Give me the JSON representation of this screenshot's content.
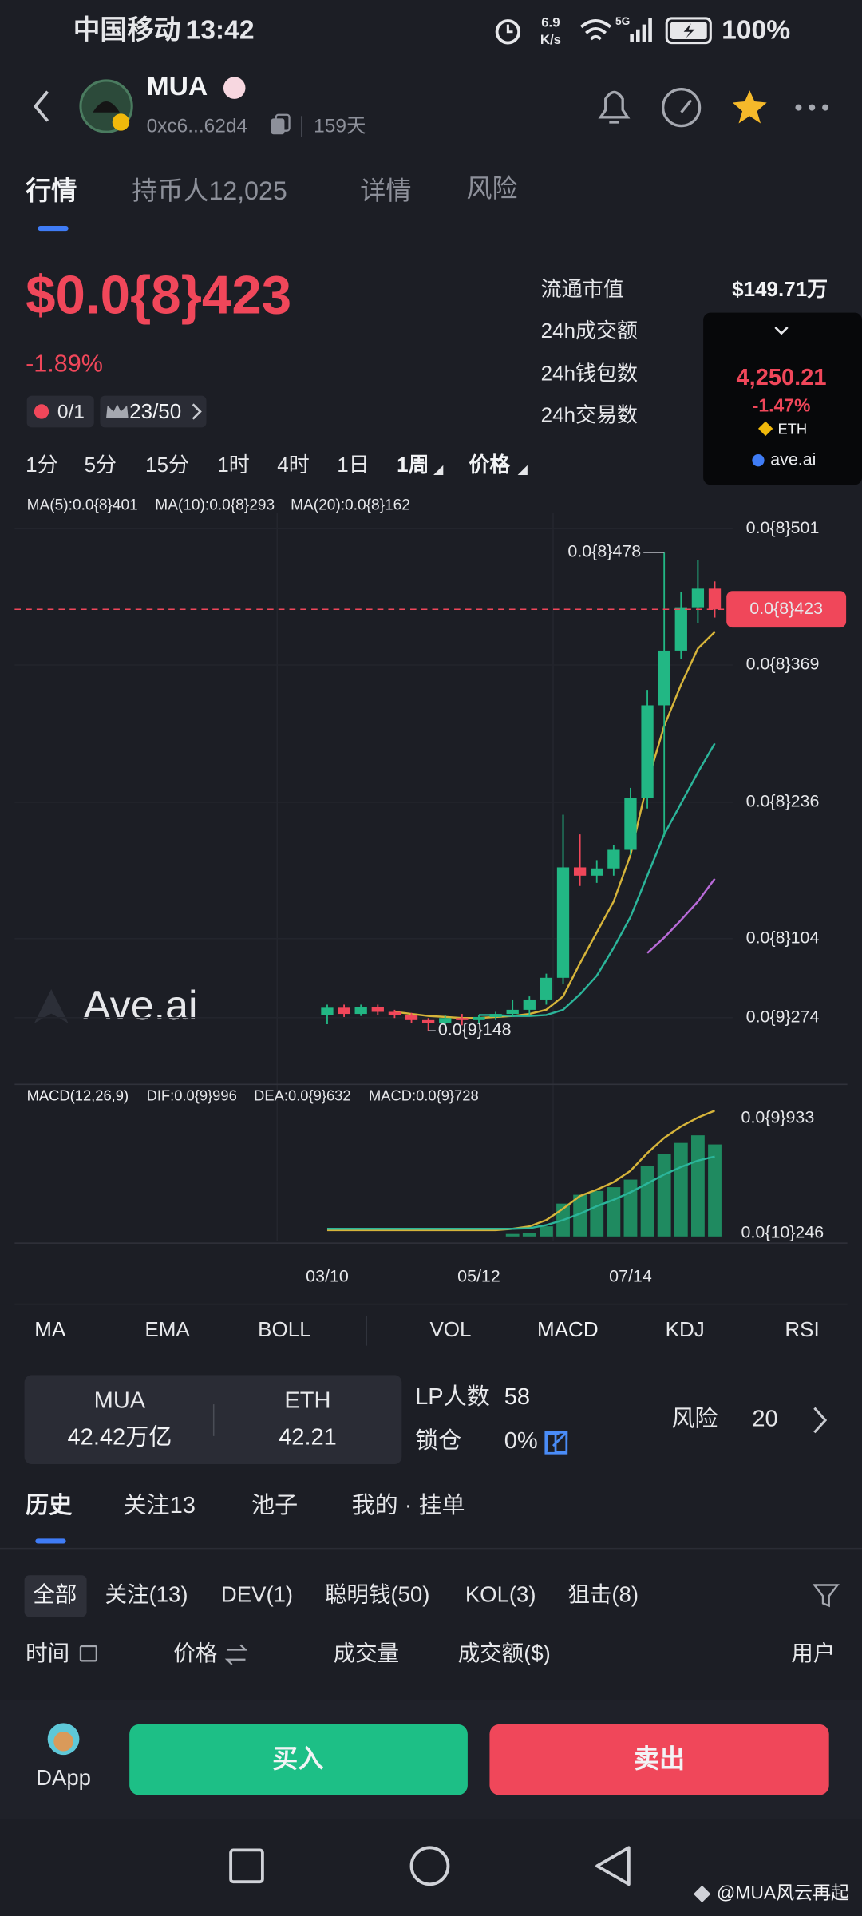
{
  "status_bar": {
    "carrier": "中国移动",
    "time": "13:42",
    "speed": "6.9",
    "speed_unit": "K/s",
    "network": "5G",
    "battery": "100%"
  },
  "header": {
    "name": "MUA",
    "address": "0xc6...62d4",
    "age": "159天"
  },
  "tabs": [
    "行情",
    "持币人12,025",
    "详情",
    "风险"
  ],
  "price": {
    "price": "$0.0{8}423",
    "change": "-1.89%",
    "badge_1": "0/1",
    "badge_2": "23/50"
  },
  "stats": {
    "labels": [
      "流通市值",
      "24h成交额",
      "24h钱包数",
      "24h交易数"
    ],
    "market_cap": "$149.71万"
  },
  "popup": {
    "price": "4,250.21",
    "change": "-1.47%",
    "symbol": "ETH",
    "source": "ave.ai"
  },
  "intervals": [
    "1分",
    "5分",
    "15分",
    "1时",
    "4时",
    "1日",
    "1周",
    "价格"
  ],
  "chart_data": [
    {
      "type": "candlestick",
      "categories": [
        "03/10",
        null,
        null,
        null,
        null,
        null,
        null,
        null,
        null,
        "05/12",
        null,
        null,
        null,
        null,
        null,
        null,
        null,
        null,
        "07/14",
        null,
        null,
        null,
        null,
        null
      ],
      "open": [
        3e-10,
        3.7e-10,
        3.1e-10,
        3.8e-10,
        3.3e-10,
        3e-10,
        2.5e-10,
        2.2e-10,
        2.7e-10,
        2.5e-10,
        2.8e-10,
        3.1e-10,
        3.5e-10,
        4.5e-10,
        6.6e-10,
        1.73e-09,
        1.65e-09,
        1.72e-09,
        1.9e-09,
        2.4e-09,
        3.3e-09,
        3.83e-09,
        4.25e-09,
        4.43e-09
      ],
      "high": [
        4e-10,
        4e-10,
        4e-10,
        4e-10,
        3.5e-10,
        3.2e-10,
        2.7e-10,
        3e-10,
        3.1e-10,
        3e-10,
        3.3e-10,
        4.5e-10,
        4.8e-10,
        7e-10,
        2.24e-09,
        2.05e-09,
        1.8e-09,
        1.95e-09,
        2.5e-09,
        3.45e-09,
        4.78e-09,
        4.4e-09,
        4.71e-09,
        4.5e-09
      ],
      "low": [
        2.1e-10,
        2.8e-10,
        2.9e-10,
        3e-10,
        2.7e-10,
        2.2e-10,
        1.48e-10,
        1.8e-10,
        2e-10,
        2.2e-10,
        2.5e-10,
        2.8e-10,
        3e-10,
        4e-10,
        6e-10,
        1.55e-09,
        1.58e-09,
        1.65e-09,
        1.85e-09,
        2.3e-09,
        2.03e-09,
        3.75e-09,
        4.1e-09,
        4.15e-09
      ],
      "close": [
        3.7e-10,
        3.1e-10,
        3.8e-10,
        3.3e-10,
        3e-10,
        2.5e-10,
        2.2e-10,
        2.7e-10,
        2.5e-10,
        2.8e-10,
        3.1e-10,
        3.5e-10,
        4.5e-10,
        6.6e-10,
        1.73e-09,
        1.65e-09,
        1.72e-09,
        1.9e-09,
        2.4e-09,
        3.3e-09,
        3.83e-09,
        4.25e-09,
        4.43e-09,
        4.23e-09
      ],
      "up_color": "#22b784",
      "down_color": "#f0475a",
      "series": [
        {
          "name": "MA(5):0.0{8}401",
          "color": "#d6b43a",
          "values": [
            null,
            null,
            null,
            null,
            3.3e-10,
            3.1e-10,
            2.9e-10,
            2.8e-10,
            2.7e-10,
            2.7e-10,
            2.8e-10,
            2.9e-10,
            3.1e-10,
            3.5e-10,
            4.8e-10,
            8e-10,
            1.1e-09,
            1.4e-09,
            1.85e-09,
            2.55e-09,
            3.1e-09,
            3.5e-09,
            3.85e-09,
            4.01e-09
          ]
        },
        {
          "name": "MA(10):0.0{8}293",
          "color": "#2bb59a",
          "values": [
            null,
            null,
            null,
            null,
            null,
            null,
            null,
            null,
            null,
            3e-10,
            3e-10,
            2.9e-10,
            2.9e-10,
            3e-10,
            3.5e-10,
            5e-10,
            6.8e-10,
            9.5e-10,
            1.25e-09,
            1.65e-09,
            2.05e-09,
            2.35e-09,
            2.65e-09,
            2.93e-09
          ]
        },
        {
          "name": "MA(20):0.0{8}162",
          "color": "#b86ad8",
          "values": [
            null,
            null,
            null,
            null,
            null,
            null,
            null,
            null,
            null,
            null,
            null,
            null,
            null,
            null,
            null,
            null,
            null,
            null,
            null,
            9e-10,
            1.05e-09,
            1.22e-09,
            1.4e-09,
            1.62e-09
          ]
        }
      ],
      "ylim": [
        -3.37e-10,
        5.164e-09
      ],
      "yticks": [
        {
          "value": 5.01e-09,
          "label": "0.0{8}501"
        },
        {
          "value": 3.69e-09,
          "label": "0.0{8}369"
        },
        {
          "value": 2.36e-09,
          "label": "0.0{8}236"
        },
        {
          "value": 1.04e-09,
          "label": "0.0{8}104"
        },
        {
          "value": 2.74e-10,
          "label": "0.0{9}274"
        }
      ],
      "grid": true,
      "max_label": "0.0{8}478",
      "min_label": "0.0{9}148",
      "last_label": "0.0{8}423",
      "watermark": "Ave.ai"
    },
    {
      "type": "macd",
      "title": "MACD(12,26,9)",
      "series": [
        {
          "name": "DIF:0.0{9}996",
          "type": "line",
          "color": "#d6b43a",
          "values": [
            5e-11,
            5e-11,
            5e-11,
            5e-11,
            5e-11,
            5e-11,
            5e-11,
            5e-11,
            5e-11,
            5e-11,
            5e-11,
            6e-11,
            8e-11,
            1.3e-10,
            2.2e-10,
            3.2e-10,
            3.7e-10,
            4.3e-10,
            5.2e-10,
            6.6e-10,
            7.8e-10,
            8.7e-10,
            9.4e-10,
            9.96e-10
          ]
        },
        {
          "name": "DEA:0.0{9}632",
          "type": "line",
          "color": "#2bb59a",
          "values": [
            6e-11,
            6e-11,
            6e-11,
            6e-11,
            6e-11,
            6e-11,
            6e-11,
            6e-11,
            6e-11,
            6e-11,
            6e-11,
            6e-11,
            6.5e-11,
            9e-11,
            1.3e-10,
            1.8e-10,
            2.4e-10,
            2.9e-10,
            3.5e-10,
            4.2e-10,
            4.9e-10,
            5.5e-10,
            6e-10,
            6.32e-10
          ]
        },
        {
          "name": "MACD:0.0{9}728",
          "type": "bar",
          "color": "#b86ad8",
          "bar_color": "#1f8a60",
          "values": [
            null,
            null,
            null,
            null,
            null,
            null,
            null,
            null,
            null,
            null,
            null,
            2e-11,
            3e-11,
            8e-11,
            2.6e-10,
            3.3e-10,
            3.6e-10,
            3.9e-10,
            4.5e-10,
            5.6e-10,
            6.5e-10,
            7.4e-10,
            8e-10,
            7.28e-10
          ]
        }
      ],
      "ylim": [
        -3.34e-11,
        1.039e-09
      ],
      "yticks": [
        {
          "value": 9.33e-10,
          "label": "0.0{9}933"
        },
        {
          "value": 2.46e-11,
          "label": "0.0{10}246"
        }
      ]
    }
  ],
  "indicators": [
    "MA",
    "EMA",
    "BOLL",
    "VOL",
    "MACD",
    "KDJ",
    "RSI"
  ],
  "pool": {
    "token": "MUA",
    "token_amount": "42.42万亿",
    "base": "ETH",
    "base_amount": "42.21",
    "lp_label": "LP人数",
    "lp_value": "58",
    "lock_label": "锁仓",
    "lock_value": "0%",
    "risk_label": "风险",
    "risk_value": "20"
  },
  "history_tabs": [
    "历史",
    "关注13",
    "池子",
    "我的 · 挂单"
  ],
  "filters": [
    "全部",
    "关注(13)",
    "DEV(1)",
    "聪明钱(50)",
    "KOL(3)",
    "狙击(8)"
  ],
  "columns": [
    "时间",
    "价格",
    "成交量",
    "成交额($)",
    "用户"
  ],
  "actions": {
    "dapp": "DApp",
    "buy": "买入",
    "sell": "卖出"
  },
  "watermark": "@MUA风云再起"
}
